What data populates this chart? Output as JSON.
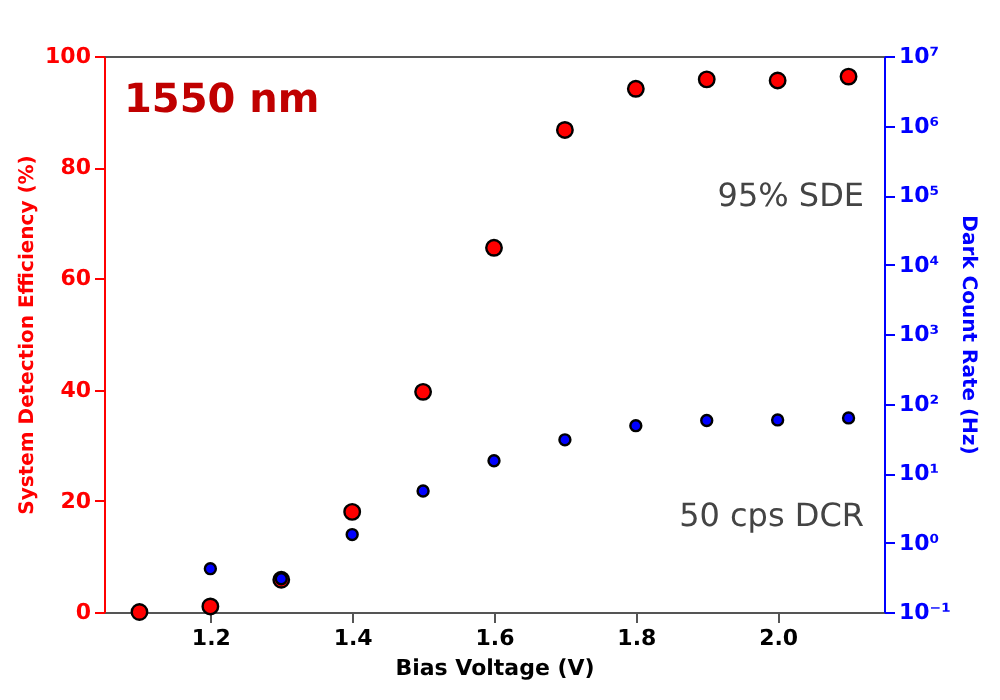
{
  "chart_data": {
    "type": "scatter",
    "xlabel": "Bias Voltage (V)",
    "ylabel": "System Detection Efficiency (%)",
    "y2label": "Dark Count Rate (Hz)",
    "annotations": [
      "1550 nm",
      "95% SDE",
      "50 cps DCR"
    ],
    "x": [
      1.1,
      1.2,
      1.3,
      1.4,
      1.5,
      1.6,
      1.7,
      1.8,
      1.9,
      2.0,
      2.1
    ],
    "series": [
      {
        "color": "#ff0000",
        "values": [
          0,
          1.0,
          5.8,
          18.0,
          39.6,
          65.5,
          86.7,
          94.1,
          95.8,
          95.6,
          96.3
        ]
      },
      {
        "color": "#0000ff",
        "axis": "y2",
        "values": [
          null,
          0.42,
          0.3,
          1.3,
          5.5,
          15,
          30,
          48,
          57,
          58,
          62
        ]
      }
    ],
    "xlim": [
      1.05,
      2.15
    ],
    "xticks": [
      {
        "value": 1.2,
        "label": "1.2"
      },
      {
        "value": 1.4,
        "label": "1.4"
      },
      {
        "value": 1.6,
        "label": "1.6"
      },
      {
        "value": 1.8,
        "label": "1.8"
      },
      {
        "value": 2.0,
        "label": "2.0"
      }
    ],
    "ylim": [
      0,
      100
    ],
    "yticks": [
      0,
      20,
      40,
      60,
      80,
      100
    ],
    "y2lim": [
      0.1,
      10000000
    ],
    "y2ticks": [
      {
        "value": 0.1,
        "label": "10⁻¹"
      },
      {
        "value": 1,
        "label": "10⁰"
      },
      {
        "value": 10,
        "label": "10¹"
      },
      {
        "value": 100,
        "label": "10²"
      },
      {
        "value": 1000,
        "label": "10³"
      },
      {
        "value": 10000,
        "label": "10⁴"
      },
      {
        "value": 100000,
        "label": "10⁵"
      },
      {
        "value": 1000000,
        "label": "10⁶"
      },
      {
        "value": 10000000,
        "label": "10⁷"
      }
    ],
    "log": "y2",
    "marker": "circle",
    "grid": false
  }
}
